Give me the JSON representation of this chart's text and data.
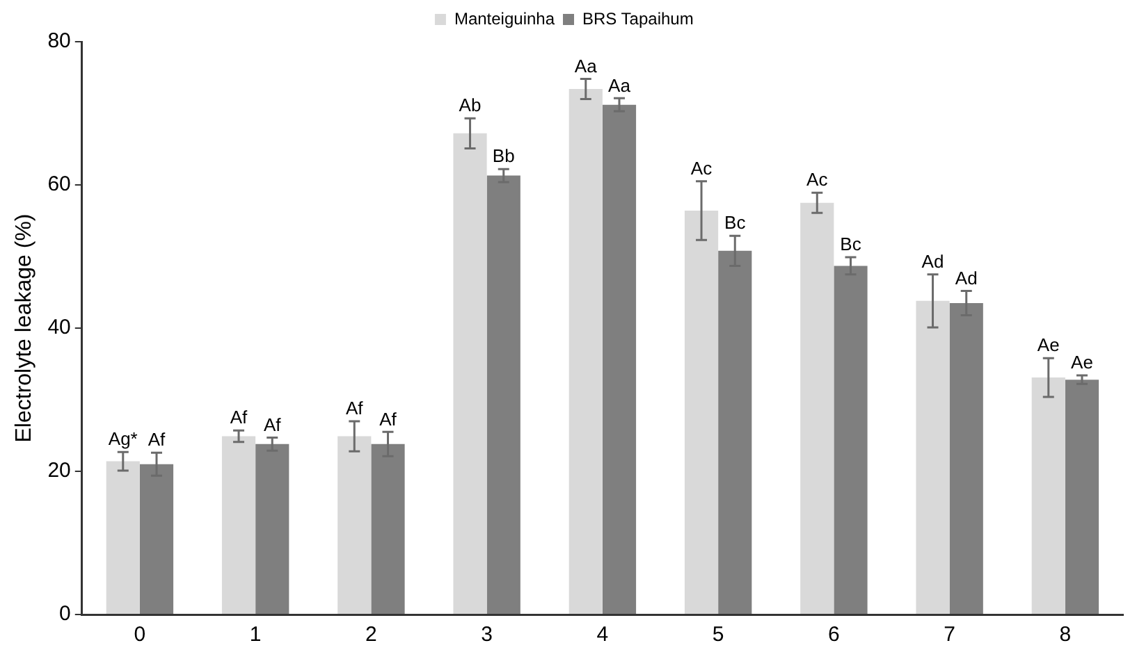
{
  "chart_data": {
    "type": "bar",
    "ylabel": "Electrolyte leakage (%)",
    "categories": [
      "0",
      "1",
      "2",
      "3",
      "4",
      "5",
      "6",
      "7",
      "8"
    ],
    "series": [
      {
        "name": "Manteiguinha",
        "color": "#d9d9d9",
        "values": [
          21.4,
          24.9,
          24.9,
          67.2,
          73.4,
          56.4,
          57.5,
          43.8,
          33.1
        ],
        "errors": [
          1.3,
          0.8,
          2.1,
          2.1,
          1.4,
          4.1,
          1.4,
          3.7,
          2.7
        ],
        "value_labels": [
          "Ag*",
          "Af",
          "Af",
          "Ab",
          "Aa",
          "Ac",
          "Ac",
          "Ad",
          "Ae"
        ]
      },
      {
        "name": "BRS Tapaihum",
        "color": "#7f7f7f",
        "values": [
          21.0,
          23.8,
          23.8,
          61.3,
          71.2,
          50.8,
          48.7,
          43.5,
          32.8
        ],
        "errors": [
          1.6,
          0.9,
          1.7,
          0.9,
          0.9,
          2.1,
          1.2,
          1.7,
          0.6
        ],
        "value_labels": [
          "Af",
          "Af",
          "Af",
          "Bb",
          "Aa",
          "Bc",
          "Bc",
          "Ad",
          "Ae"
        ]
      }
    ],
    "ylim": [
      0,
      80
    ],
    "yticks": [
      0,
      20,
      40,
      60,
      80
    ],
    "grid": false,
    "legend": "top"
  }
}
